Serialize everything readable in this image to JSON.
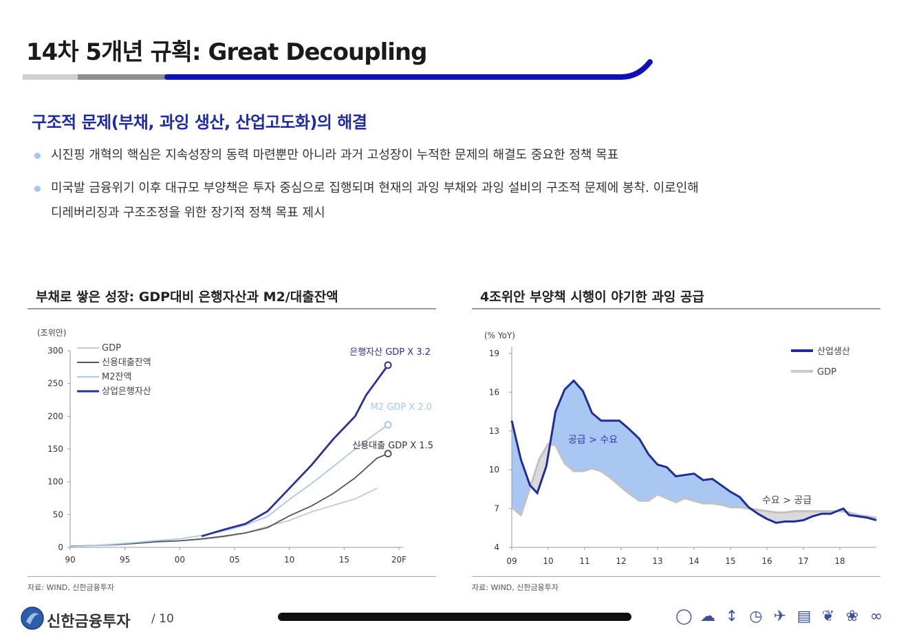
{
  "header": {
    "title": "14차 5개년 규획: Great Decoupling"
  },
  "section": {
    "subtitle": "구조적 문제(부채, 과잉 생산, 산업고도화)의 해결",
    "bullets": [
      {
        "line1": "시진핑 개혁의 핵심은 지속성장의 동력 마련뿐만 아니라 과거 고성장이 누적한 문제의 해결도 중요한 정책 목표"
      },
      {
        "line1": "미국발 금융위기 이후 대규모 부양책은 투자 중심으로 집행되며 현재의 과잉 부채와 과잉 설비의 구조적 문제에 봉착. 이로인해",
        "line2": "디레버리징과 구조조정을 위한 장기적 정책 목표 제시"
      }
    ]
  },
  "left_chart": {
    "panel_title": "부채로 쌓은 성장: GDP대비 은행자산과 M2/대출잔액",
    "source": "자료: WIND, 신한금융투자",
    "annotations": {
      "bank_assets": "은행자산 GDP X 3.2",
      "m2": "M2 GDP X 2.0",
      "loans": "신용대출 GDP X 1.5"
    }
  },
  "right_chart": {
    "panel_title": "4조위안 부양책 시행이 야기한 과잉 공급",
    "source": "자료: WIND, 신한금융투자",
    "annotations": {
      "oversupply": "공급 > 수요",
      "overdemand": "수요 > 공급"
    }
  },
  "chart_data": [
    {
      "type": "line",
      "title": "부채로 쌓은 성장: GDP대비 은행자산과 M2/대출잔액",
      "unit": "(조위안)",
      "ylim": [
        0,
        300
      ],
      "yticks": [
        "0",
        "50",
        "100",
        "150",
        "200",
        "250",
        "300"
      ],
      "xticks": [
        "90",
        "95",
        "00",
        "05",
        "10",
        "15",
        "20F"
      ],
      "xlim": [
        1990,
        2020
      ],
      "legend_position": "top-left",
      "series": [
        {
          "name": "GDP",
          "color": "#c8c8c8",
          "points": [
            [
              1990,
              1.9
            ],
            [
              1992,
              2.7
            ],
            [
              1994,
              4.8
            ],
            [
              1996,
              7.2
            ],
            [
              1998,
              8.5
            ],
            [
              2000,
              10
            ],
            [
              2002,
              12
            ],
            [
              2004,
              16
            ],
            [
              2006,
              22
            ],
            [
              2008,
              32
            ],
            [
              2010,
              41
            ],
            [
              2012,
              54
            ],
            [
              2014,
              64
            ],
            [
              2016,
              74
            ],
            [
              2018,
              90
            ]
          ]
        },
        {
          "name": "신용대출잔액",
          "color": "#555555",
          "points": [
            [
              1990,
              1.8
            ],
            [
              1992,
              2.6
            ],
            [
              1994,
              4
            ],
            [
              1996,
              6.1
            ],
            [
              1998,
              8.7
            ],
            [
              2000,
              10
            ],
            [
              2002,
              13
            ],
            [
              2004,
              17
            ],
            [
              2006,
              22
            ],
            [
              2008,
              30
            ],
            [
              2010,
              48
            ],
            [
              2012,
              63
            ],
            [
              2014,
              82
            ],
            [
              2016,
              106
            ],
            [
              2018,
              136
            ],
            [
              2019,
              143
            ]
          ]
        },
        {
          "name": "M2잔액",
          "color": "#a8c8f0",
          "points": [
            [
              1990,
              1.5
            ],
            [
              1992,
              2.5
            ],
            [
              1994,
              4.7
            ],
            [
              1996,
              7.6
            ],
            [
              1998,
              10.5
            ],
            [
              2000,
              13
            ],
            [
              2002,
              18
            ],
            [
              2004,
              25
            ],
            [
              2006,
              34
            ],
            [
              2008,
              47
            ],
            [
              2010,
              73
            ],
            [
              2012,
              97
            ],
            [
              2014,
              123
            ],
            [
              2016,
              150
            ],
            [
              2018,
              175
            ],
            [
              2019,
              187
            ]
          ]
        },
        {
          "name": "상업은행자산",
          "color": "#2b2f9a",
          "points": [
            [
              2002,
              17
            ],
            [
              2004,
              27
            ],
            [
              2006,
              36
            ],
            [
              2008,
              55
            ],
            [
              2010,
              90
            ],
            [
              2012,
              125
            ],
            [
              2014,
              165
            ],
            [
              2016,
              200
            ],
            [
              2017,
              232
            ],
            [
              2018,
              255
            ],
            [
              2019,
              278
            ]
          ]
        }
      ],
      "end_markers": [
        {
          "series": "상업은행자산",
          "x": 2019,
          "y": 278
        },
        {
          "series": "M2잔액",
          "x": 2019,
          "y": 187
        },
        {
          "series": "신용대출잔액",
          "x": 2019,
          "y": 143
        }
      ]
    },
    {
      "type": "line",
      "title": "4조위안 부양책 시행이 야기한 과잉 공급",
      "unit": "(% YoY)",
      "ylim": [
        4,
        19
      ],
      "yticks": [
        "4",
        "7",
        "10",
        "13",
        "16",
        "19"
      ],
      "xticks": [
        "09",
        "10",
        "11",
        "12",
        "13",
        "14",
        "15",
        "16",
        "17",
        "18"
      ],
      "xlim": [
        2009,
        2019
      ],
      "legend_position": "top-right",
      "series": [
        {
          "name": "산업생산",
          "color": "#1f2d9c",
          "points": [
            [
              2009,
              13.8
            ],
            [
              2009.25,
              10.8
            ],
            [
              2009.5,
              8.8
            ],
            [
              2009.7,
              8.2
            ],
            [
              2009.95,
              10.3
            ],
            [
              2010.2,
              14.5
            ],
            [
              2010.45,
              16.2
            ],
            [
              2010.7,
              16.9
            ],
            [
              2010.95,
              16.1
            ],
            [
              2011.2,
              14.4
            ],
            [
              2011.45,
              13.8
            ],
            [
              2011.7,
              13.8
            ],
            [
              2011.95,
              13.8
            ],
            [
              2012.2,
              13.2
            ],
            [
              2012.5,
              12.4
            ],
            [
              2012.75,
              11.2
            ],
            [
              2013,
              10.4
            ],
            [
              2013.25,
              10.2
            ],
            [
              2013.5,
              9.5
            ],
            [
              2013.75,
              9.6
            ],
            [
              2014,
              9.7
            ],
            [
              2014.25,
              9.2
            ],
            [
              2014.5,
              9.3
            ],
            [
              2014.75,
              8.8
            ],
            [
              2015,
              8.3
            ],
            [
              2015.25,
              7.9
            ],
            [
              2015.5,
              7.1
            ],
            [
              2015.75,
              6.6
            ],
            [
              2016,
              6.2
            ],
            [
              2016.25,
              5.9
            ],
            [
              2016.5,
              6
            ],
            [
              2016.75,
              6
            ],
            [
              2017,
              6.1
            ],
            [
              2017.25,
              6.4
            ],
            [
              2017.5,
              6.6
            ],
            [
              2017.75,
              6.6
            ],
            [
              2018,
              6.9
            ],
            [
              2018.1,
              7
            ],
            [
              2018.25,
              6.5
            ],
            [
              2018.5,
              6.4
            ],
            [
              2018.75,
              6.3
            ],
            [
              2019,
              6.1
            ]
          ]
        },
        {
          "name": "GDP",
          "color": "#c8c8c8",
          "points": [
            [
              2009,
              7.1
            ],
            [
              2009.25,
              6.5
            ],
            [
              2009.5,
              8.6
            ],
            [
              2009.75,
              10.8
            ],
            [
              2010,
              12
            ],
            [
              2010.2,
              11.9
            ],
            [
              2010.45,
              10.5
            ],
            [
              2010.7,
              9.9
            ],
            [
              2010.95,
              9.9
            ],
            [
              2011.2,
              10.1
            ],
            [
              2011.45,
              9.9
            ],
            [
              2011.7,
              9.4
            ],
            [
              2011.95,
              8.8
            ],
            [
              2012.2,
              8.2
            ],
            [
              2012.5,
              7.6
            ],
            [
              2012.75,
              7.6
            ],
            [
              2013,
              8.1
            ],
            [
              2013.25,
              7.8
            ],
            [
              2013.5,
              7.5
            ],
            [
              2013.75,
              7.8
            ],
            [
              2014,
              7.6
            ],
            [
              2014.25,
              7.4
            ],
            [
              2014.5,
              7.4
            ],
            [
              2014.75,
              7.3
            ],
            [
              2015,
              7.1
            ],
            [
              2015.25,
              7.1
            ],
            [
              2015.5,
              7
            ],
            [
              2015.75,
              6.9
            ],
            [
              2016,
              6.8
            ],
            [
              2016.25,
              6.7
            ],
            [
              2016.5,
              6.7
            ],
            [
              2016.75,
              6.8
            ],
            [
              2017,
              6.8
            ],
            [
              2017.25,
              6.8
            ],
            [
              2017.5,
              6.8
            ],
            [
              2017.75,
              6.8
            ],
            [
              2018,
              6.8
            ],
            [
              2018.25,
              6.7
            ],
            [
              2018.5,
              6.5
            ],
            [
              2018.75,
              6.4
            ],
            [
              2019,
              6.3
            ]
          ]
        }
      ]
    }
  ],
  "footer": {
    "brand": "신한금융투자",
    "page": "/ 10",
    "icons": [
      "lightbulb-icon",
      "cloud-icon",
      "thermometer-icon",
      "clock-icon",
      "airplane-icon",
      "document-icon",
      "leaf-icon",
      "flower-icon",
      "bicycle-icon"
    ]
  }
}
